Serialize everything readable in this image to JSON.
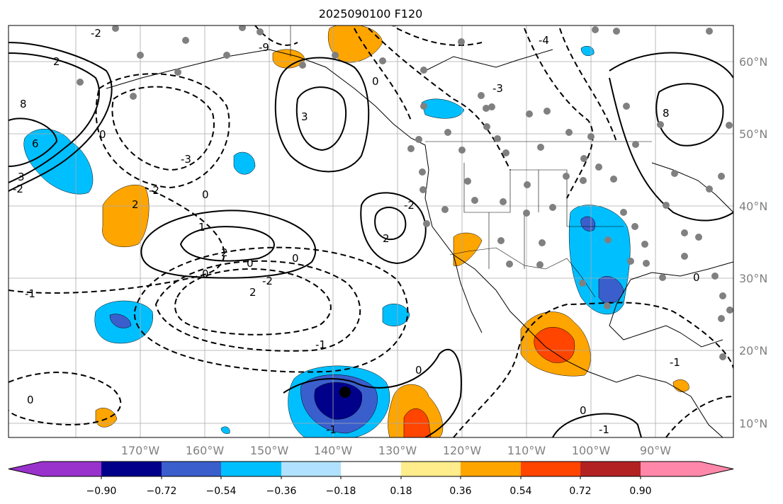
{
  "title": "2025090100 F120",
  "map": {
    "lon_labels": [
      "170°W",
      "160°W",
      "150°W",
      "140°W",
      "130°W",
      "120°W",
      "110°W",
      "100°W",
      "90°W"
    ],
    "lat_labels": [
      "60°N",
      "50°N",
      "40°N",
      "30°N",
      "20°N",
      "10°N"
    ],
    "contour_labels": [
      "2",
      "-2",
      "8",
      "6",
      "3",
      "0",
      "-2",
      "-3",
      "2",
      "-2",
      "0",
      "1",
      "2",
      "0",
      "-2",
      "2",
      "-1",
      "0",
      "-2",
      "2",
      "3",
      "-3",
      "0",
      "8",
      "-9",
      "0",
      "-1",
      "0",
      "-1",
      "0",
      "-1",
      "0",
      "-4",
      "0",
      "-1"
    ]
  },
  "colorbar": {
    "colors": [
      "#9932cc",
      "#00008b",
      "#3a5fcd",
      "#00bfff",
      "#b0e2ff",
      "#ffffff",
      "#ffec8b",
      "#ffa500",
      "#ff4500",
      "#b22222",
      "#ff88aa"
    ],
    "tick_labels": [
      "−0.90",
      "−0.72",
      "−0.54",
      "−0.36",
      "−0.18",
      "0.18",
      "0.36",
      "0.54",
      "0.72",
      "0.90"
    ]
  },
  "stations_color": "#808080"
}
